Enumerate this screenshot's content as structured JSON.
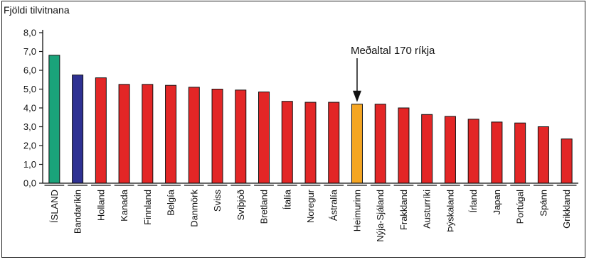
{
  "chart_data": {
    "type": "bar",
    "ylabel": "Fjöldi tilvitnana",
    "ylim": [
      0,
      8
    ],
    "yticks": [
      "0,0",
      "1,0",
      "2,0",
      "3,0",
      "4,0",
      "5,0",
      "6,0",
      "7,0",
      "8,0"
    ],
    "categories": [
      "ÍSLAND",
      "Bandaríkin",
      "Holland",
      "Kanada",
      "Finnland",
      "Belgía",
      "Danmörk",
      "Sviss",
      "Svíþjóð",
      "Bretland",
      "Ítalía",
      "Noregur",
      "Ástralía",
      "Heimurinn",
      "Nýja-Sjáland",
      "Frakkland",
      "Austurríki",
      "Þýskaland",
      "Írland",
      "Japan",
      "Portúgal",
      "Spánn",
      "Grikkland"
    ],
    "values": [
      6.8,
      5.75,
      5.6,
      5.25,
      5.25,
      5.2,
      5.1,
      5.0,
      4.95,
      4.85,
      4.35,
      4.3,
      4.3,
      4.2,
      4.2,
      4.0,
      3.65,
      3.55,
      3.4,
      3.25,
      3.2,
      3.0,
      2.35
    ],
    "colors": [
      "#1aa37a",
      "#2e3192",
      "#e32626",
      "#e32626",
      "#e32626",
      "#e32626",
      "#e32626",
      "#e32626",
      "#e32626",
      "#e32626",
      "#e32626",
      "#e32626",
      "#e32626",
      "#f5a623",
      "#e32626",
      "#e32626",
      "#e32626",
      "#e32626",
      "#e32626",
      "#e32626",
      "#e32626",
      "#e32626",
      "#e32626"
    ],
    "annotation": {
      "text": "Meðaltal 170 ríkja",
      "category": "Heimurinn"
    },
    "grid": false
  }
}
